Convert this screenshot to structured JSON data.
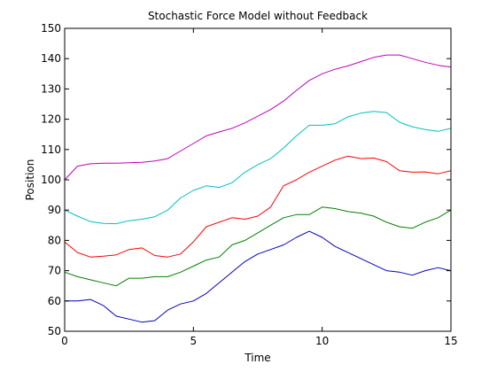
{
  "chart_data": {
    "type": "line",
    "title": "Stochastic Force Model without Feedback",
    "xlabel": "Time",
    "ylabel": "Position",
    "xlim": [
      0,
      15
    ],
    "ylim": [
      50,
      150
    ],
    "xticks": [
      0,
      5,
      10,
      15
    ],
    "yticks": [
      50,
      60,
      70,
      80,
      90,
      100,
      110,
      120,
      130,
      140,
      150
    ],
    "grid": false,
    "legend": "none",
    "series": [
      {
        "color": "#bf00bf",
        "x": [
          0,
          0.5,
          1,
          1.5,
          2,
          2.5,
          3,
          3.5,
          4,
          4.5,
          5,
          5.5,
          6,
          6.5,
          7,
          7.5,
          8,
          8.5,
          9,
          9.5,
          10,
          10.5,
          11,
          11.5,
          12,
          12.5,
          13,
          13.5,
          14,
          14.5,
          15
        ],
        "y": [
          100,
          104.5,
          105.3,
          105.5,
          105.5,
          105.6,
          105.8,
          106.2,
          107,
          109.5,
          112,
          114.5,
          115.8,
          117,
          118.8,
          121,
          123.2,
          126,
          129.5,
          132.8,
          135,
          136.5,
          137.6,
          139,
          140.4,
          141.2,
          141.2,
          140,
          138.8,
          137.8,
          137.2
        ]
      },
      {
        "color": "#00bfbf",
        "x": [
          0,
          0.5,
          1,
          1.5,
          2,
          2.5,
          3,
          3.5,
          4,
          4.5,
          5,
          5.5,
          6,
          6.5,
          7,
          7.5,
          8,
          8.5,
          9,
          9.5,
          10,
          10.5,
          11,
          11.5,
          12,
          12.5,
          13,
          13.5,
          14,
          14.5,
          15
        ],
        "y": [
          90,
          88,
          86.2,
          85.6,
          85.5,
          86.5,
          87,
          87.8,
          90,
          94,
          96.5,
          98,
          97.5,
          99,
          102.5,
          105,
          107,
          110.5,
          114.5,
          118,
          118,
          118.5,
          120.8,
          122,
          122.6,
          122.2,
          119,
          117.5,
          116.6,
          116,
          117
        ]
      },
      {
        "color": "#ff0000",
        "x": [
          0,
          0.5,
          1,
          1.5,
          2,
          2.5,
          3,
          3.5,
          4,
          4.5,
          5,
          5.5,
          6,
          6.5,
          7,
          7.5,
          8,
          8.5,
          9,
          9.5,
          10,
          10.5,
          11,
          11.5,
          12,
          12.5,
          13,
          13.5,
          14,
          14.5,
          15
        ],
        "y": [
          79.5,
          76,
          74.5,
          74.8,
          75.2,
          77,
          77.5,
          75,
          74.5,
          75.5,
          79.5,
          84.5,
          86,
          87.5,
          87,
          88,
          91,
          98,
          100,
          102.5,
          104.5,
          106.5,
          107.8,
          107,
          107.2,
          106,
          103,
          102.5,
          102.6,
          102,
          103
        ]
      },
      {
        "color": "#008000",
        "x": [
          0,
          0.5,
          1,
          1.5,
          2,
          2.5,
          3,
          3.5,
          4,
          4.5,
          5,
          5.5,
          6,
          6.5,
          7,
          7.5,
          8,
          8.5,
          9,
          9.5,
          10,
          10.5,
          11,
          11.5,
          12,
          12.5,
          13,
          13.5,
          14,
          14.5,
          15
        ],
        "y": [
          69.5,
          68,
          67,
          66,
          65,
          67.5,
          67.5,
          68,
          68,
          69.5,
          71.5,
          73.5,
          74.5,
          78.5,
          80,
          82.5,
          85,
          87.5,
          88.5,
          88.5,
          91,
          90.5,
          89.5,
          89,
          88,
          86,
          84.5,
          84,
          86,
          87.5,
          90
        ]
      },
      {
        "color": "#0000bf",
        "x": [
          0,
          0.5,
          1,
          1.5,
          2,
          2.5,
          3,
          3.5,
          4,
          4.5,
          5,
          5.5,
          6,
          6.5,
          7,
          7.5,
          8,
          8.5,
          9,
          9.5,
          10,
          10.5,
          11,
          11.5,
          12,
          12.5,
          13,
          13.5,
          14,
          14.5,
          15
        ],
        "y": [
          60,
          60,
          60.5,
          58.5,
          55,
          54,
          53,
          53.5,
          57,
          59,
          60,
          62.5,
          66,
          69.5,
          73,
          75.5,
          77,
          78.5,
          81,
          83,
          81,
          78,
          76,
          74,
          72,
          70,
          69.5,
          68.5,
          70,
          71,
          70
        ]
      }
    ]
  }
}
